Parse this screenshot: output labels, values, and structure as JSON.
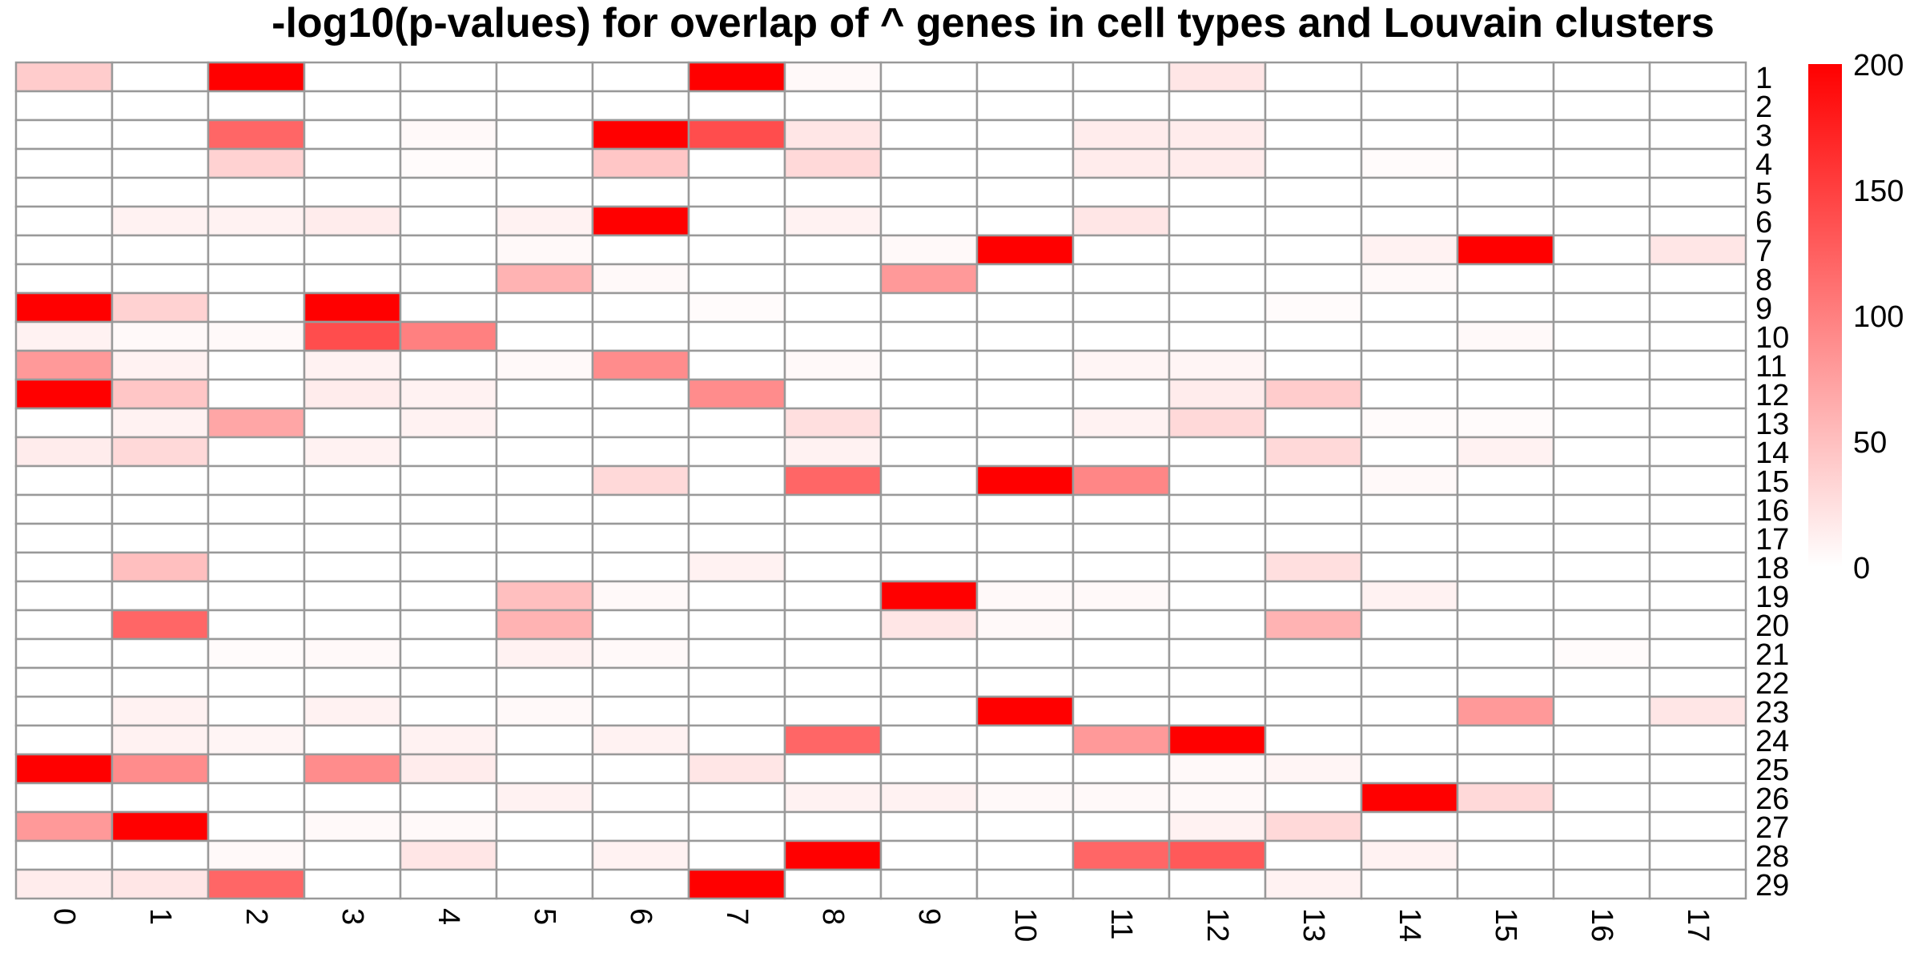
{
  "chart_data": {
    "type": "heatmap",
    "title": "-log10(p-values) for overlap of ^ genes in cell types and Louvain clusters",
    "x_categories": [
      "0",
      "1",
      "2",
      "3",
      "4",
      "5",
      "6",
      "7",
      "8",
      "9",
      "10",
      "11",
      "12",
      "13",
      "14",
      "15",
      "16",
      "17"
    ],
    "y_categories": [
      "1",
      "2",
      "3",
      "4",
      "5",
      "6",
      "7",
      "8",
      "9",
      "10",
      "11",
      "12",
      "13",
      "14",
      "15",
      "16",
      "17",
      "18",
      "19",
      "20",
      "21",
      "22",
      "23",
      "24",
      "25",
      "26",
      "27",
      "28",
      "29"
    ],
    "values": [
      [
        40,
        0,
        200,
        0,
        0,
        0,
        0,
        200,
        5,
        0,
        0,
        0,
        20,
        0,
        0,
        0,
        0,
        0
      ],
      [
        0,
        0,
        0,
        0,
        0,
        0,
        0,
        0,
        0,
        0,
        0,
        0,
        0,
        0,
        0,
        0,
        0,
        0
      ],
      [
        0,
        0,
        120,
        0,
        5,
        0,
        200,
        140,
        20,
        0,
        0,
        15,
        15,
        0,
        0,
        0,
        0,
        0
      ],
      [
        0,
        0,
        35,
        0,
        3,
        0,
        45,
        0,
        30,
        0,
        0,
        15,
        15,
        0,
        3,
        0,
        0,
        0
      ],
      [
        0,
        0,
        0,
        0,
        0,
        0,
        0,
        0,
        0,
        0,
        0,
        0,
        0,
        0,
        0,
        0,
        0,
        0
      ],
      [
        0,
        10,
        10,
        15,
        0,
        10,
        200,
        0,
        10,
        0,
        0,
        20,
        0,
        0,
        0,
        0,
        0,
        0
      ],
      [
        0,
        0,
        0,
        0,
        0,
        5,
        0,
        0,
        0,
        5,
        200,
        0,
        0,
        0,
        10,
        200,
        0,
        20
      ],
      [
        0,
        0,
        0,
        0,
        0,
        60,
        5,
        0,
        0,
        80,
        0,
        0,
        0,
        0,
        5,
        0,
        0,
        0
      ],
      [
        200,
        35,
        0,
        200,
        0,
        0,
        0,
        3,
        0,
        0,
        0,
        0,
        0,
        3,
        0,
        0,
        0,
        0
      ],
      [
        10,
        5,
        5,
        140,
        100,
        0,
        0,
        0,
        0,
        0,
        0,
        0,
        0,
        0,
        0,
        5,
        0,
        0
      ],
      [
        80,
        10,
        0,
        10,
        0,
        5,
        90,
        0,
        5,
        0,
        0,
        8,
        8,
        0,
        0,
        0,
        0,
        0
      ],
      [
        200,
        45,
        0,
        15,
        10,
        0,
        0,
        90,
        0,
        0,
        0,
        0,
        15,
        40,
        0,
        0,
        0,
        0
      ],
      [
        0,
        10,
        70,
        0,
        10,
        0,
        0,
        0,
        25,
        0,
        0,
        10,
        30,
        0,
        3,
        3,
        0,
        0
      ],
      [
        15,
        30,
        0,
        10,
        0,
        0,
        0,
        0,
        10,
        0,
        0,
        0,
        0,
        30,
        0,
        10,
        0,
        0
      ],
      [
        0,
        0,
        0,
        0,
        0,
        0,
        30,
        0,
        120,
        0,
        200,
        95,
        0,
        0,
        5,
        0,
        0,
        0
      ],
      [
        0,
        0,
        0,
        0,
        0,
        0,
        0,
        0,
        0,
        0,
        0,
        0,
        0,
        0,
        0,
        0,
        0,
        0
      ],
      [
        0,
        0,
        0,
        0,
        0,
        0,
        0,
        0,
        0,
        0,
        0,
        0,
        0,
        0,
        0,
        0,
        0,
        0
      ],
      [
        0,
        50,
        0,
        0,
        0,
        0,
        0,
        10,
        0,
        0,
        0,
        0,
        0,
        25,
        0,
        0,
        0,
        0
      ],
      [
        0,
        0,
        0,
        0,
        0,
        50,
        5,
        0,
        0,
        200,
        5,
        5,
        0,
        0,
        10,
        0,
        0,
        0
      ],
      [
        0,
        120,
        0,
        0,
        0,
        60,
        0,
        0,
        0,
        20,
        5,
        0,
        0,
        60,
        0,
        0,
        0,
        0
      ],
      [
        0,
        0,
        3,
        5,
        0,
        10,
        5,
        0,
        0,
        0,
        0,
        0,
        0,
        0,
        0,
        0,
        3,
        0
      ],
      [
        0,
        0,
        0,
        0,
        0,
        0,
        0,
        0,
        0,
        0,
        0,
        0,
        0,
        0,
        0,
        0,
        0,
        0
      ],
      [
        0,
        10,
        0,
        10,
        0,
        5,
        0,
        0,
        0,
        0,
        200,
        0,
        0,
        0,
        0,
        80,
        0,
        20
      ],
      [
        0,
        10,
        8,
        0,
        10,
        0,
        10,
        0,
        120,
        0,
        0,
        80,
        200,
        0,
        0,
        0,
        0,
        0
      ],
      [
        200,
        90,
        0,
        90,
        15,
        0,
        0,
        20,
        0,
        0,
        0,
        0,
        5,
        8,
        0,
        0,
        0,
        0
      ],
      [
        0,
        0,
        0,
        0,
        0,
        10,
        0,
        0,
        10,
        10,
        5,
        5,
        5,
        0,
        200,
        30,
        0,
        0
      ],
      [
        80,
        200,
        0,
        5,
        5,
        0,
        0,
        0,
        0,
        0,
        0,
        0,
        10,
        30,
        0,
        0,
        0,
        0
      ],
      [
        0,
        0,
        5,
        0,
        20,
        0,
        10,
        0,
        200,
        0,
        0,
        120,
        130,
        0,
        10,
        0,
        0,
        0
      ],
      [
        15,
        20,
        120,
        0,
        0,
        0,
        0,
        200,
        0,
        0,
        0,
        0,
        0,
        10,
        0,
        0,
        0,
        0
      ]
    ],
    "color_scale": {
      "min": 0,
      "max": 200,
      "low_color": "#ffffff",
      "high_color": "#ff0000"
    },
    "legend": {
      "placement": "right",
      "ticks": [
        0,
        50,
        100,
        150,
        200
      ]
    },
    "grid_color": "#999999"
  }
}
